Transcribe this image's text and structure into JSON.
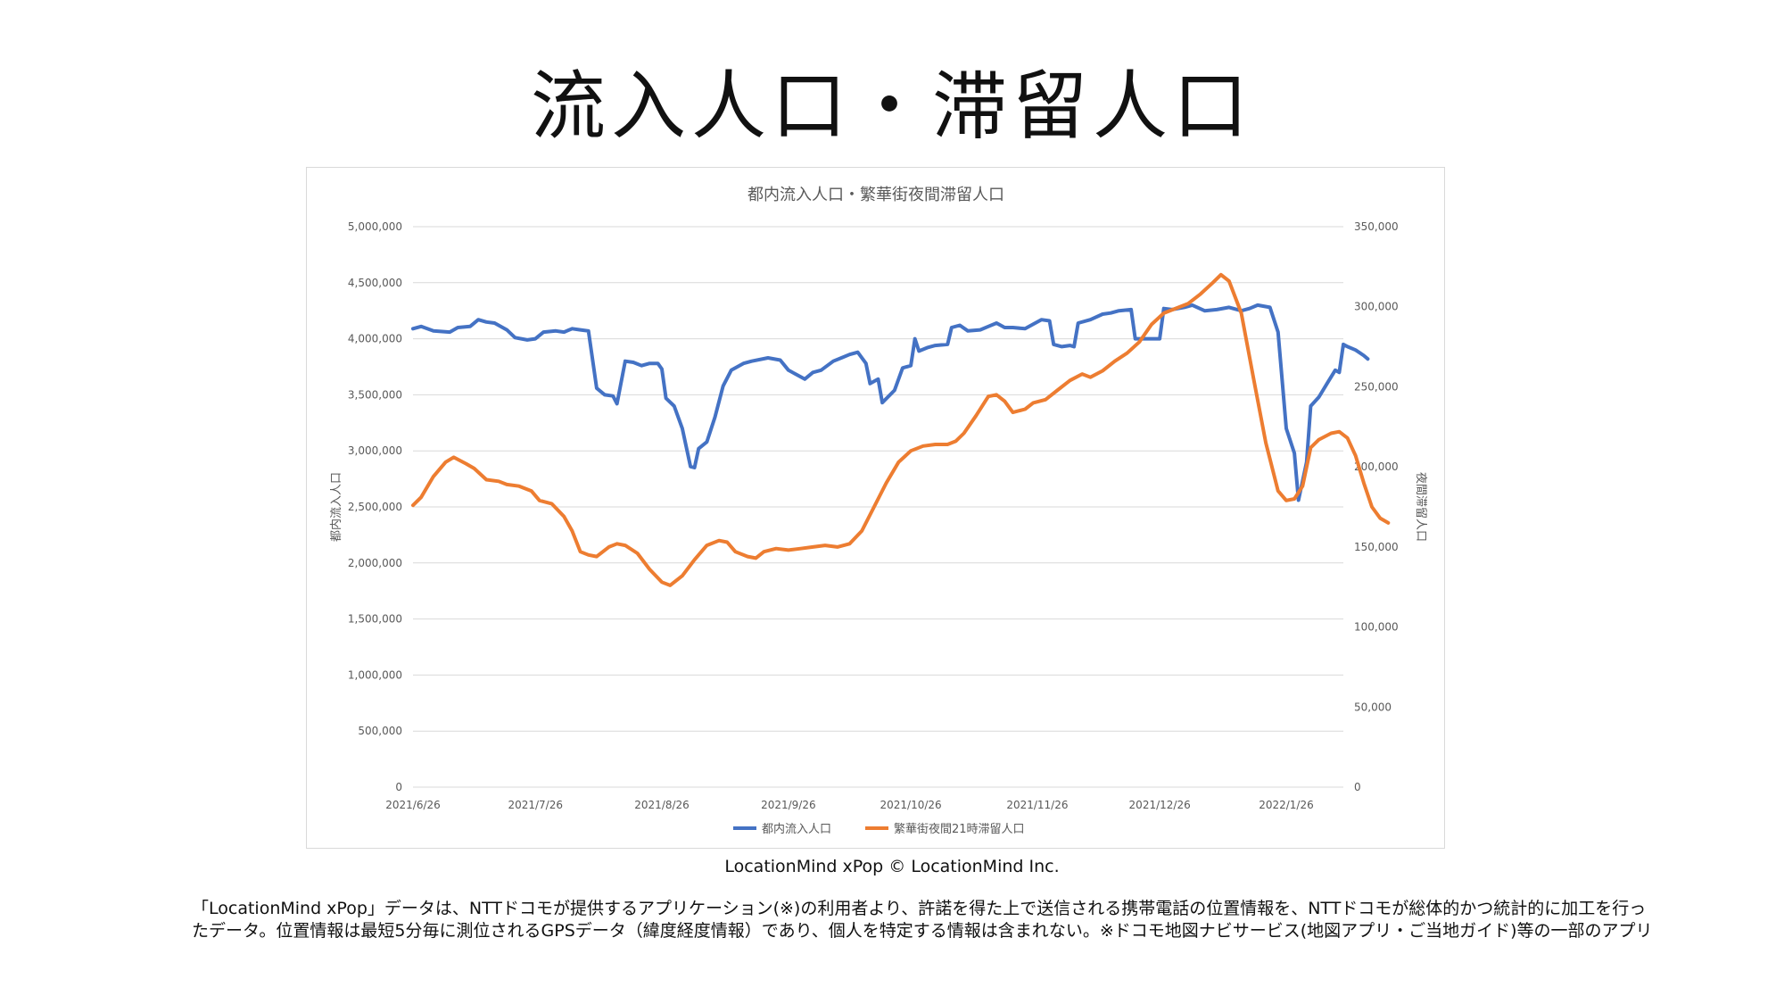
{
  "slide": {
    "title": "流入人口・滞留人口",
    "credit": "LocationMind xPop © LocationMind Inc.",
    "note": "「LocationMind xPop」データは、NTTドコモが提供するアプリケーション(※)の利用者より、許諾を得た上で送信される携帯電話の位置情報を、NTTドコモが総体的かつ統計的に加工を行ったデータ。位置情報は最短5分毎に測位されるGPSデータ（緯度経度情報）であり、個人を特定する情報は含まれない。※ドコモ地図ナビサービス(地図アプリ・ご当地ガイド)等の一部のアプリ"
  },
  "chart_data": {
    "type": "line",
    "title": "都内流入人口・繁華街夜間滞留人口",
    "ylabel": "都内流入人口",
    "y2label": "夜間滞留人口",
    "ylim": [
      0,
      5000000
    ],
    "y2lim": [
      0,
      350000
    ],
    "yticks": [
      "0",
      "500,000",
      "1,000,000",
      "1,500,000",
      "2,000,000",
      "2,500,000",
      "3,000,000",
      "3,500,000",
      "4,000,000",
      "4,500,000",
      "5,000,000"
    ],
    "y2ticks": [
      "0",
      "50,000",
      "100,000",
      "150,000",
      "200,000",
      "250,000",
      "300,000",
      "350,000"
    ],
    "xticks": [
      "2021/6/26",
      "2021/7/26",
      "2021/8/26",
      "2021/9/26",
      "2021/10/26",
      "2021/11/26",
      "2021/12/26",
      "2022/1/26"
    ],
    "xlim": [
      "2021-06-26",
      "2022-02-09"
    ],
    "grid": true,
    "legend_position": "bottom",
    "series": [
      {
        "name": "都内流入人口",
        "axis": "left",
        "color": "#4472c4",
        "points": [
          [
            "2021-06-26",
            4090000
          ],
          [
            "2021-06-28",
            4110000
          ],
          [
            "2021-07-01",
            4070000
          ],
          [
            "2021-07-05",
            4060000
          ],
          [
            "2021-07-07",
            4100000
          ],
          [
            "2021-07-10",
            4110000
          ],
          [
            "2021-07-12",
            4170000
          ],
          [
            "2021-07-14",
            4150000
          ],
          [
            "2021-07-16",
            4140000
          ],
          [
            "2021-07-19",
            4080000
          ],
          [
            "2021-07-21",
            4010000
          ],
          [
            "2021-07-24",
            3990000
          ],
          [
            "2021-07-26",
            4000000
          ],
          [
            "2021-07-28",
            4060000
          ],
          [
            "2021-07-31",
            4070000
          ],
          [
            "2021-08-02",
            4060000
          ],
          [
            "2021-08-04",
            4090000
          ],
          [
            "2021-08-06",
            4080000
          ],
          [
            "2021-08-08",
            4070000
          ],
          [
            "2021-08-10",
            3560000
          ],
          [
            "2021-08-12",
            3500000
          ],
          [
            "2021-08-14",
            3490000
          ],
          [
            "2021-08-15",
            3420000
          ],
          [
            "2021-08-17",
            3800000
          ],
          [
            "2021-08-19",
            3790000
          ],
          [
            "2021-08-21",
            3760000
          ],
          [
            "2021-08-23",
            3780000
          ],
          [
            "2021-08-25",
            3780000
          ],
          [
            "2021-08-26",
            3730000
          ],
          [
            "2021-08-27",
            3470000
          ],
          [
            "2021-08-29",
            3400000
          ],
          [
            "2021-08-31",
            3200000
          ],
          [
            "2021-09-02",
            2860000
          ],
          [
            "2021-09-03",
            2850000
          ],
          [
            "2021-09-04",
            3020000
          ],
          [
            "2021-09-06",
            3080000
          ],
          [
            "2021-09-08",
            3300000
          ],
          [
            "2021-09-10",
            3580000
          ],
          [
            "2021-09-12",
            3720000
          ],
          [
            "2021-09-15",
            3780000
          ],
          [
            "2021-09-17",
            3800000
          ],
          [
            "2021-09-21",
            3830000
          ],
          [
            "2021-09-24",
            3810000
          ],
          [
            "2021-09-26",
            3720000
          ],
          [
            "2021-09-28",
            3680000
          ],
          [
            "2021-09-30",
            3640000
          ],
          [
            "2021-10-02",
            3700000
          ],
          [
            "2021-10-04",
            3720000
          ],
          [
            "2021-10-07",
            3800000
          ],
          [
            "2021-10-09",
            3830000
          ],
          [
            "2021-10-11",
            3860000
          ],
          [
            "2021-10-13",
            3880000
          ],
          [
            "2021-10-15",
            3780000
          ],
          [
            "2021-10-16",
            3600000
          ],
          [
            "2021-10-18",
            3640000
          ],
          [
            "2021-10-19",
            3430000
          ],
          [
            "2021-10-22",
            3540000
          ],
          [
            "2021-10-24",
            3740000
          ],
          [
            "2021-10-26",
            3760000
          ],
          [
            "2021-10-27",
            4000000
          ],
          [
            "2021-10-28",
            3890000
          ],
          [
            "2021-10-30",
            3920000
          ],
          [
            "2021-11-01",
            3940000
          ],
          [
            "2021-11-04",
            3950000
          ],
          [
            "2021-11-05",
            4100000
          ],
          [
            "2021-11-07",
            4120000
          ],
          [
            "2021-11-09",
            4070000
          ],
          [
            "2021-11-12",
            4080000
          ],
          [
            "2021-11-14",
            4110000
          ],
          [
            "2021-11-16",
            4140000
          ],
          [
            "2021-11-18",
            4100000
          ],
          [
            "2021-11-20",
            4100000
          ],
          [
            "2021-11-23",
            4090000
          ],
          [
            "2021-11-25",
            4130000
          ],
          [
            "2021-11-27",
            4170000
          ],
          [
            "2021-11-29",
            4160000
          ],
          [
            "2021-11-30",
            3950000
          ],
          [
            "2021-12-02",
            3930000
          ],
          [
            "2021-12-04",
            3940000
          ],
          [
            "2021-12-05",
            3930000
          ],
          [
            "2021-12-06",
            4140000
          ],
          [
            "2021-12-09",
            4170000
          ],
          [
            "2021-12-12",
            4220000
          ],
          [
            "2021-12-14",
            4230000
          ],
          [
            "2021-12-16",
            4250000
          ],
          [
            "2021-12-19",
            4260000
          ],
          [
            "2021-12-20",
            4000000
          ],
          [
            "2021-12-23",
            4000000
          ],
          [
            "2021-12-26",
            4000000
          ],
          [
            "2021-12-27",
            4270000
          ],
          [
            "2021-12-29",
            4260000
          ],
          [
            "2022-01-01",
            4280000
          ],
          [
            "2022-01-03",
            4300000
          ],
          [
            "2022-01-06",
            4250000
          ],
          [
            "2022-01-09",
            4260000
          ],
          [
            "2022-01-12",
            4280000
          ],
          [
            "2022-01-15",
            4250000
          ],
          [
            "2022-01-17",
            4270000
          ],
          [
            "2022-01-19",
            4300000
          ],
          [
            "2022-01-22",
            4280000
          ],
          [
            "2022-01-24",
            4060000
          ],
          [
            "2022-01-26",
            3200000
          ],
          [
            "2022-01-28",
            2980000
          ],
          [
            "2022-01-29",
            2560000
          ],
          [
            "2022-01-31",
            2900000
          ],
          [
            "2022-02-01",
            3400000
          ],
          [
            "2022-02-03",
            3480000
          ],
          [
            "2022-02-05",
            3600000
          ],
          [
            "2022-02-07",
            3720000
          ],
          [
            "2022-02-08",
            3700000
          ],
          [
            "2022-02-09",
            3950000
          ],
          [
            "2022-02-10",
            3930000
          ],
          [
            "2022-02-12",
            3900000
          ],
          [
            "2022-02-14",
            3850000
          ],
          [
            "2022-02-15",
            3820000
          ]
        ]
      },
      {
        "name": "繁華街夜間21時滞留人口",
        "axis": "right",
        "color": "#ed7d31",
        "points": [
          [
            "2021-06-26",
            176000
          ],
          [
            "2021-06-28",
            181000
          ],
          [
            "2021-07-01",
            194000
          ],
          [
            "2021-07-04",
            203000
          ],
          [
            "2021-07-06",
            206000
          ],
          [
            "2021-07-09",
            202000
          ],
          [
            "2021-07-11",
            199000
          ],
          [
            "2021-07-14",
            192000
          ],
          [
            "2021-07-17",
            191000
          ],
          [
            "2021-07-19",
            189000
          ],
          [
            "2021-07-22",
            188000
          ],
          [
            "2021-07-25",
            185000
          ],
          [
            "2021-07-27",
            179000
          ],
          [
            "2021-07-30",
            177000
          ],
          [
            "2021-08-02",
            169000
          ],
          [
            "2021-08-04",
            160000
          ],
          [
            "2021-08-06",
            147000
          ],
          [
            "2021-08-08",
            145000
          ],
          [
            "2021-08-10",
            144000
          ],
          [
            "2021-08-13",
            150000
          ],
          [
            "2021-08-15",
            152000
          ],
          [
            "2021-08-17",
            151000
          ],
          [
            "2021-08-20",
            146000
          ],
          [
            "2021-08-23",
            136000
          ],
          [
            "2021-08-26",
            128000
          ],
          [
            "2021-08-28",
            126000
          ],
          [
            "2021-08-31",
            132000
          ],
          [
            "2021-09-03",
            142000
          ],
          [
            "2021-09-06",
            151000
          ],
          [
            "2021-09-09",
            154000
          ],
          [
            "2021-09-11",
            153000
          ],
          [
            "2021-09-13",
            147000
          ],
          [
            "2021-09-16",
            144000
          ],
          [
            "2021-09-18",
            143000
          ],
          [
            "2021-09-20",
            147000
          ],
          [
            "2021-09-23",
            149000
          ],
          [
            "2021-09-26",
            148000
          ],
          [
            "2021-09-29",
            149000
          ],
          [
            "2021-10-02",
            150000
          ],
          [
            "2021-10-05",
            151000
          ],
          [
            "2021-10-08",
            150000
          ],
          [
            "2021-10-11",
            152000
          ],
          [
            "2021-10-14",
            160000
          ],
          [
            "2021-10-17",
            175000
          ],
          [
            "2021-10-20",
            190000
          ],
          [
            "2021-10-23",
            203000
          ],
          [
            "2021-10-26",
            210000
          ],
          [
            "2021-10-29",
            213000
          ],
          [
            "2021-11-01",
            214000
          ],
          [
            "2021-11-04",
            214000
          ],
          [
            "2021-11-06",
            216000
          ],
          [
            "2021-11-08",
            221000
          ],
          [
            "2021-11-11",
            232000
          ],
          [
            "2021-11-14",
            244000
          ],
          [
            "2021-11-16",
            245000
          ],
          [
            "2021-11-18",
            241000
          ],
          [
            "2021-11-20",
            234000
          ],
          [
            "2021-11-23",
            236000
          ],
          [
            "2021-11-25",
            240000
          ],
          [
            "2021-11-28",
            242000
          ],
          [
            "2021-12-01",
            248000
          ],
          [
            "2021-12-04",
            254000
          ],
          [
            "2021-12-07",
            258000
          ],
          [
            "2021-12-09",
            256000
          ],
          [
            "2021-12-12",
            260000
          ],
          [
            "2021-12-15",
            266000
          ],
          [
            "2021-12-18",
            271000
          ],
          [
            "2021-12-21",
            278000
          ],
          [
            "2021-12-24",
            289000
          ],
          [
            "2021-12-27",
            296000
          ],
          [
            "2021-12-30",
            299000
          ],
          [
            "2022-01-02",
            302000
          ],
          [
            "2022-01-05",
            308000
          ],
          [
            "2022-01-08",
            315000
          ],
          [
            "2022-01-10",
            320000
          ],
          [
            "2022-01-12",
            316000
          ],
          [
            "2022-01-15",
            296000
          ],
          [
            "2022-01-18",
            255000
          ],
          [
            "2022-01-21",
            215000
          ],
          [
            "2022-01-24",
            185000
          ],
          [
            "2022-01-26",
            179000
          ],
          [
            "2022-01-28",
            180000
          ],
          [
            "2022-01-30",
            188000
          ],
          [
            "2022-02-01",
            212000
          ],
          [
            "2022-02-03",
            217000
          ],
          [
            "2022-02-06",
            221000
          ],
          [
            "2022-02-08",
            222000
          ],
          [
            "2022-02-10",
            218000
          ],
          [
            "2022-02-12",
            207000
          ],
          [
            "2022-02-14",
            190000
          ],
          [
            "2022-02-16",
            175000
          ],
          [
            "2022-02-18",
            168000
          ],
          [
            "2022-02-20",
            165000
          ]
        ]
      }
    ]
  }
}
